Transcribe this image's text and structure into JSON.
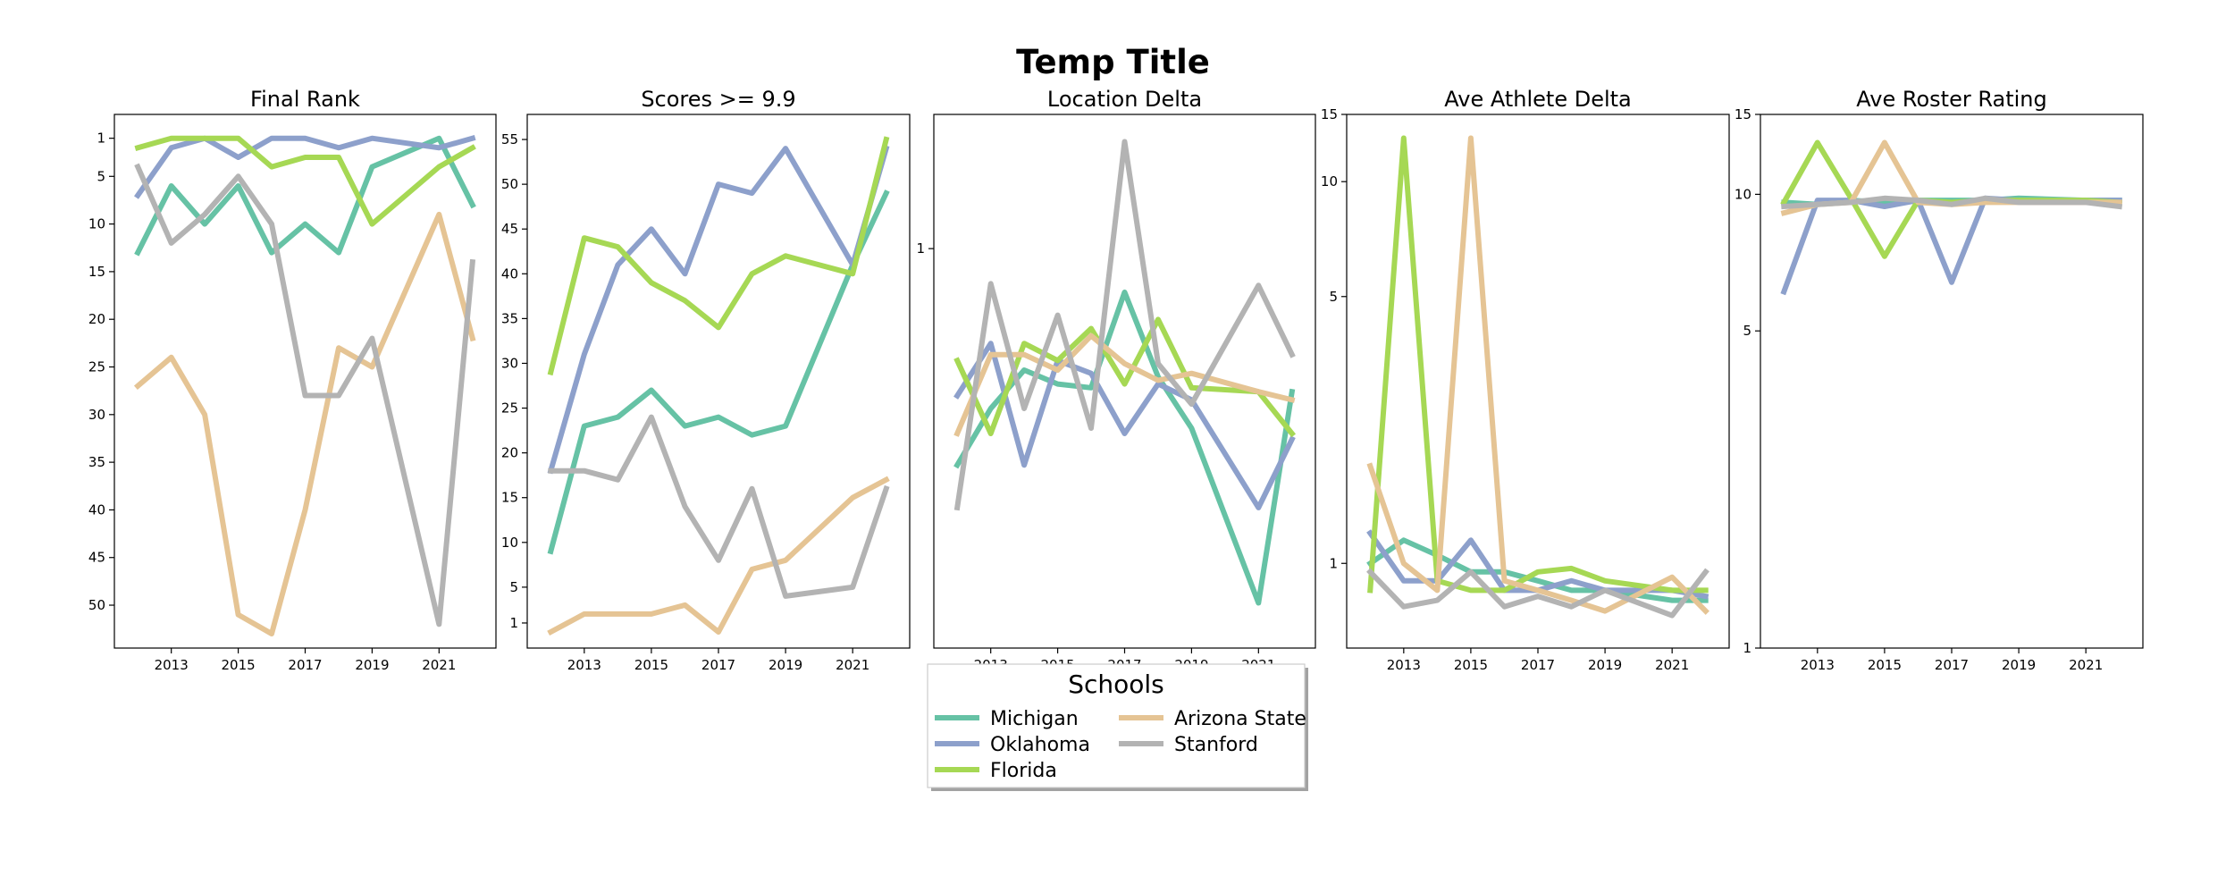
{
  "figure": {
    "title": "Temp Title"
  },
  "legend": {
    "title": "Schools",
    "placement": "below-center"
  },
  "chart_data": [
    {
      "type": "line",
      "title": "Final Rank",
      "xlabel": "",
      "ylabel": "",
      "y_inverted": true,
      "xlim": [
        2011.3,
        2022.7
      ],
      "ylim": [
        -1.5,
        54.5
      ],
      "xticks": [
        2013,
        2015,
        2017,
        2019,
        2021
      ],
      "yticks": [
        1,
        5,
        10,
        15,
        20,
        25,
        30,
        35,
        40,
        45,
        50
      ],
      "x": [
        2012,
        2013,
        2014,
        2015,
        2016,
        2017,
        2018,
        2019,
        2020,
        2021,
        2022
      ],
      "series": [
        {
          "name": "Michigan",
          "color": "#66c2a5",
          "values": [
            13,
            6,
            10,
            6,
            13,
            10,
            13,
            4,
            null,
            1,
            8
          ]
        },
        {
          "name": "Oklahoma",
          "color": "#8da0cb",
          "values": [
            7,
            2,
            1,
            3,
            1,
            1,
            2,
            1,
            null,
            2,
            1
          ]
        },
        {
          "name": "Florida",
          "color": "#a6d854",
          "values": [
            2,
            1,
            1,
            1,
            4,
            3,
            3,
            10,
            null,
            4,
            2
          ]
        },
        {
          "name": "Arizona State",
          "color": "#e5c494",
          "values": [
            27,
            24,
            30,
            51,
            53,
            40,
            23,
            25,
            null,
            9,
            22
          ]
        },
        {
          "name": "Stanford",
          "color": "#b3b3b3",
          "values": [
            4,
            12,
            9,
            5,
            10,
            28,
            28,
            22,
            null,
            52,
            14
          ]
        }
      ]
    },
    {
      "type": "line",
      "title": "Scores >= 9.9",
      "xlabel": "",
      "ylabel": "",
      "xlim": [
        2011.3,
        2022.7
      ],
      "ylim": [
        -1.8,
        57.8
      ],
      "xticks": [
        2013,
        2015,
        2017,
        2019,
        2021
      ],
      "yticks": [
        1,
        5,
        10,
        15,
        20,
        25,
        30,
        35,
        40,
        45,
        50,
        55
      ],
      "x": [
        2012,
        2013,
        2014,
        2015,
        2016,
        2017,
        2018,
        2019,
        2020,
        2021,
        2022
      ],
      "series": [
        {
          "name": "Michigan",
          "color": "#66c2a5",
          "values": [
            9,
            23,
            24,
            27,
            23,
            24,
            22,
            23,
            null,
            41,
            49
          ]
        },
        {
          "name": "Oklahoma",
          "color": "#8da0cb",
          "values": [
            18,
            31,
            41,
            45,
            40,
            50,
            49,
            54,
            null,
            41,
            54
          ]
        },
        {
          "name": "Florida",
          "color": "#a6d854",
          "values": [
            29,
            44,
            43,
            39,
            37,
            34,
            40,
            42,
            null,
            40,
            55
          ]
        },
        {
          "name": "Arizona State",
          "color": "#e5c494",
          "values": [
            0,
            2,
            2,
            2,
            3,
            0,
            7,
            8,
            null,
            15,
            17
          ]
        },
        {
          "name": "Stanford",
          "color": "#b3b3b3",
          "values": [
            18,
            18,
            17,
            24,
            14,
            8,
            16,
            4,
            null,
            5,
            16
          ]
        }
      ]
    },
    {
      "type": "line",
      "title": "Location Delta",
      "xlabel": "",
      "ylabel": "",
      "y_scale": "log",
      "xlim": [
        2011.3,
        2022.7
      ],
      "ylim": [
        0.038,
        3.0
      ],
      "xticks": [
        2013,
        2015,
        2017,
        2019,
        2021
      ],
      "yticks": [
        1
      ],
      "x": [
        2012,
        2013,
        2014,
        2015,
        2016,
        2017,
        2018,
        2019,
        2020,
        2021,
        2022
      ],
      "series": [
        {
          "name": "Michigan",
          "color": "#66c2a5",
          "values": [
            0.17,
            0.27,
            0.37,
            0.33,
            0.32,
            0.7,
            0.35,
            0.23,
            null,
            0.055,
            0.31
          ]
        },
        {
          "name": "Oklahoma",
          "color": "#8da0cb",
          "values": [
            0.3,
            0.46,
            0.17,
            0.4,
            0.36,
            0.22,
            0.33,
            0.29,
            null,
            0.12,
            0.21
          ]
        },
        {
          "name": "Florida",
          "color": "#a6d854",
          "values": [
            0.4,
            0.22,
            0.46,
            0.4,
            0.52,
            0.33,
            0.56,
            0.32,
            null,
            0.31,
            0.22
          ]
        },
        {
          "name": "Arizona State",
          "color": "#e5c494",
          "values": [
            0.22,
            0.42,
            0.42,
            0.37,
            0.49,
            0.39,
            0.34,
            0.36,
            null,
            0.31,
            0.29
          ]
        },
        {
          "name": "Stanford",
          "color": "#b3b3b3",
          "values": [
            0.12,
            0.75,
            0.27,
            0.58,
            0.23,
            2.4,
            0.39,
            0.28,
            null,
            0.74,
            0.42
          ]
        }
      ]
    },
    {
      "type": "line",
      "title": "Ave Athlete Delta",
      "xlabel": "",
      "ylabel": "",
      "y_scale": "log",
      "xlim": [
        2011.3,
        2022.7
      ],
      "ylim": [
        0.6,
        15
      ],
      "xticks": [
        2013,
        2015,
        2017,
        2019,
        2021
      ],
      "yticks": [
        1,
        5,
        10,
        15
      ],
      "x": [
        2012,
        2013,
        2014,
        2015,
        2016,
        2017,
        2018,
        2019,
        2020,
        2021,
        2022
      ],
      "series": [
        {
          "name": "Michigan",
          "color": "#66c2a5",
          "values": [
            1.0,
            1.15,
            1.05,
            0.95,
            0.95,
            0.9,
            0.85,
            0.85,
            null,
            0.8,
            0.8
          ]
        },
        {
          "name": "Oklahoma",
          "color": "#8da0cb",
          "values": [
            1.2,
            0.9,
            0.9,
            1.15,
            0.85,
            0.85,
            0.9,
            0.85,
            null,
            0.85,
            0.82
          ]
        },
        {
          "name": "Florida",
          "color": "#a6d854",
          "values": [
            0.85,
            13,
            0.9,
            0.85,
            0.85,
            0.95,
            0.97,
            0.9,
            null,
            0.85,
            0.85
          ]
        },
        {
          "name": "Arizona State",
          "color": "#e5c494",
          "values": [
            1.8,
            1.0,
            0.85,
            13,
            0.9,
            0.85,
            0.8,
            0.75,
            null,
            0.92,
            0.75
          ]
        },
        {
          "name": "Stanford",
          "color": "#b3b3b3",
          "values": [
            0.95,
            0.77,
            0.8,
            0.95,
            0.77,
            0.82,
            0.77,
            0.85,
            null,
            0.73,
            0.95
          ]
        }
      ]
    },
    {
      "type": "line",
      "title": "Ave Roster Rating",
      "xlabel": "",
      "ylabel": "",
      "y_scale": "log",
      "xlim": [
        2011.3,
        2022.7
      ],
      "ylim": [
        1,
        15
      ],
      "xticks": [
        2013,
        2015,
        2017,
        2019,
        2021
      ],
      "yticks": [
        1,
        5,
        10,
        15
      ],
      "x": [
        2012,
        2013,
        2014,
        2015,
        2016,
        2017,
        2018,
        2019,
        2020,
        2021,
        2022
      ],
      "series": [
        {
          "name": "Michigan",
          "color": "#66c2a5",
          "values": [
            9.6,
            9.5,
            9.7,
            9.6,
            9.7,
            9.7,
            9.7,
            9.8,
            null,
            9.7,
            9.7
          ]
        },
        {
          "name": "Oklahoma",
          "color": "#8da0cb",
          "values": [
            6.1,
            9.7,
            9.7,
            9.4,
            9.7,
            6.4,
            9.8,
            9.7,
            null,
            9.7,
            9.7
          ]
        },
        {
          "name": "Florida",
          "color": "#a6d854",
          "values": [
            9.6,
            13,
            9.8,
            7.3,
            9.7,
            9.6,
            9.7,
            9.7,
            null,
            9.7,
            9.6
          ]
        },
        {
          "name": "Arizona State",
          "color": "#e5c494",
          "values": [
            9.1,
            9.5,
            9.6,
            13,
            9.6,
            9.5,
            9.6,
            9.6,
            null,
            9.6,
            9.6
          ]
        },
        {
          "name": "Stanford",
          "color": "#b3b3b3",
          "values": [
            9.4,
            9.5,
            9.6,
            9.8,
            9.7,
            9.5,
            9.8,
            9.6,
            null,
            9.6,
            9.4
          ]
        }
      ]
    }
  ]
}
